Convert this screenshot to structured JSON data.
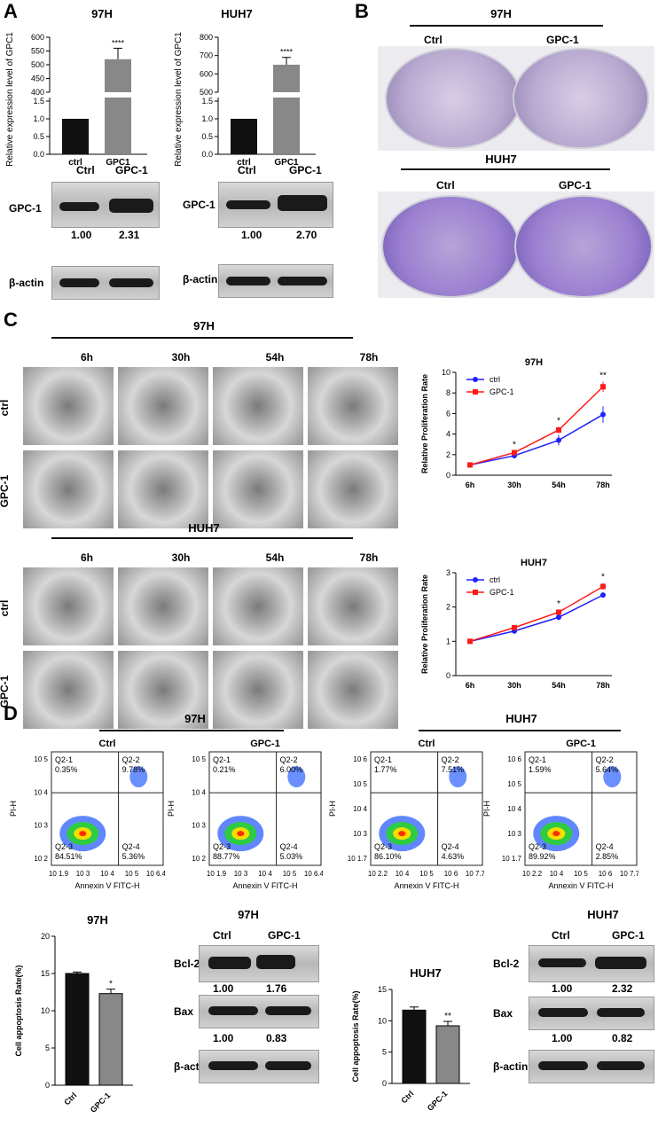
{
  "panels": {
    "a": "A",
    "b": "B",
    "c": "C",
    "d": "D"
  },
  "panelA": {
    "left_title": "97H",
    "right_title": "HUH7",
    "ylabel": "Relative expression level of GPC1",
    "sig": "****",
    "blot_left": {
      "headers": [
        "Ctrl",
        "GPC-1"
      ],
      "rows": [
        "GPC-1",
        "β-actin"
      ],
      "values": [
        "1.00",
        "2.31"
      ]
    },
    "blot_right": {
      "headers": [
        "Ctrl",
        "GPC-1"
      ],
      "rows": [
        "GPC-1",
        "β-actin"
      ],
      "values": [
        "1.00",
        "2.70"
      ]
    }
  },
  "panelB": {
    "top_title": "97H",
    "bottom_title": "HUH7",
    "labels": [
      "Ctrl",
      "GPC-1"
    ]
  },
  "panelC": {
    "top_title": "97H",
    "bottom_title": "HUH7",
    "times": [
      "6h",
      "30h",
      "54h",
      "78h"
    ],
    "rows": [
      "ctrl",
      "GPC-1"
    ]
  },
  "panelD": {
    "group_97h": "97H",
    "group_huh7": "HUH7",
    "flow": [
      {
        "title": "Ctrl",
        "q21": "Q2-1",
        "v21": "0.35%",
        "q22": "Q2-2",
        "v22": "9.78%",
        "q23": "Q2-3",
        "v23": "84.51%",
        "q24": "Q2-4",
        "v24": "5.36%",
        "yticks": [
          "10 2",
          "10 3",
          "10 4",
          "10 5"
        ],
        "xticks": [
          "10 1.9",
          "10 3",
          "10 4",
          "10 5",
          "10 6.4"
        ]
      },
      {
        "title": "GPC-1",
        "q21": "Q2-1",
        "v21": "0.21%",
        "q22": "Q2-2",
        "v22": "6.00%",
        "q23": "Q2-3",
        "v23": "88.77%",
        "q24": "Q2-4",
        "v24": "5.03%",
        "yticks": [
          "10 2",
          "10 3",
          "10 4",
          "10 5"
        ],
        "xticks": [
          "10 1.9",
          "10 3",
          "10 4",
          "10 5",
          "10 6.4"
        ]
      },
      {
        "title": "Ctrl",
        "q21": "Q2-1",
        "v21": "1.77%",
        "q22": "Q2-2",
        "v22": "7.51%",
        "q23": "Q2-3",
        "v23": "86.10%",
        "q24": "Q2-4",
        "v24": "4.63%",
        "yticks": [
          "10 1.7",
          "10 3",
          "10 4",
          "10 5",
          "10 6"
        ],
        "xticks": [
          "10 2.2",
          "10 4",
          "10 5",
          "10 6",
          "10 7.7"
        ]
      },
      {
        "title": "GPC-1",
        "q21": "Q2-1",
        "v21": "1.59%",
        "q22": "Q2-2",
        "v22": "5.64%",
        "q23": "Q2-3",
        "v23": "89.92%",
        "q24": "Q2-4",
        "v24": "2.85%",
        "yticks": [
          "10 1.7",
          "10 3",
          "10 4",
          "10 5",
          "10 6"
        ],
        "xticks": [
          "10 2.2",
          "10 4",
          "10 5",
          "10 6",
          "10 7.7"
        ]
      }
    ],
    "flow_ylabel": "PI-H",
    "flow_xlabel": "Annexin V FITC-H",
    "apop_title_97h": "97H",
    "apop_title_huh7": "HUH7",
    "apop_ylabel": "Cell appoptosis Rate(%)",
    "apop_ylabel_huh7": "Cell appoptosis Rate(%)",
    "blot_97h": {
      "title": "97H",
      "headers": [
        "Ctrl",
        "GPC-1"
      ],
      "rows": [
        "Bcl-2",
        "Bax",
        "β-actin"
      ],
      "v1": [
        "1.00",
        "1.76"
      ],
      "v2": [
        "1.00",
        "0.83"
      ]
    },
    "blot_huh7": {
      "title": "HUH7",
      "headers": [
        "Ctrl",
        "GPC-1"
      ],
      "rows": [
        "Bcl-2",
        "Bax",
        "β-actin"
      ],
      "v1": [
        "1.00",
        "2.32"
      ],
      "v2": [
        "1.00",
        "0.82"
      ]
    }
  },
  "chart_data": [
    {
      "type": "bar",
      "categories": [
        "ctrl",
        "GPC1"
      ],
      "values": [
        1.0,
        520
      ],
      "errors": [
        0,
        40
      ],
      "ylabel": "Relative expression level of GPC1",
      "title": "97H",
      "yticks_low": [
        "0.0",
        "0.5",
        "1.0",
        "1.5"
      ],
      "yticks_high": [
        "400",
        "450",
        "500",
        "550",
        "600"
      ],
      "ylim_low": [
        0,
        1.6
      ],
      "ylim_high": [
        400,
        600
      ],
      "sig": [
        "",
        "****"
      ]
    },
    {
      "type": "bar",
      "categories": [
        "ctrl",
        "GPC1"
      ],
      "values": [
        1.0,
        650
      ],
      "errors": [
        0,
        40
      ],
      "ylabel": "Relative expression level of GPC1",
      "title": "HUH7",
      "yticks_low": [
        "0.0",
        "0.5",
        "1.0",
        "1.5"
      ],
      "yticks_high": [
        "500",
        "600",
        "700",
        "800"
      ],
      "ylim_low": [
        0,
        1.6
      ],
      "ylim_high": [
        500,
        800
      ],
      "sig": [
        "",
        "****"
      ]
    },
    {
      "type": "line",
      "title": "97H",
      "ylabel": "Relative Proliferation Rate",
      "x": [
        "6h",
        "30h",
        "54h",
        "78h"
      ],
      "ylim": [
        0,
        10
      ],
      "yticks": [
        "0",
        "2",
        "4",
        "6",
        "8",
        "10"
      ],
      "series": [
        {
          "name": "ctrl",
          "color": "#2020ff",
          "values": [
            1.0,
            1.9,
            3.4,
            5.9
          ],
          "errors": [
            0.05,
            0.15,
            0.5,
            0.8
          ]
        },
        {
          "name": "GPC-1",
          "color": "#ff1a1a",
          "values": [
            1.0,
            2.2,
            4.4,
            8.6
          ],
          "errors": [
            0.05,
            0.15,
            0.3,
            0.5
          ]
        }
      ],
      "sig": [
        "",
        "*",
        "*",
        "**"
      ]
    },
    {
      "type": "line",
      "title": "HUH7",
      "ylabel": "Relative Proliferation Rate",
      "x": [
        "6h",
        "30h",
        "54h",
        "78h"
      ],
      "ylim": [
        0,
        3
      ],
      "yticks": [
        "0",
        "1",
        "2",
        "3"
      ],
      "series": [
        {
          "name": "ctrl",
          "color": "#2020ff",
          "values": [
            1.0,
            1.3,
            1.7,
            2.35
          ],
          "errors": [
            0.03,
            0.04,
            0.08,
            0.05
          ]
        },
        {
          "name": "GPC-1",
          "color": "#ff1a1a",
          "values": [
            1.0,
            1.4,
            1.85,
            2.6
          ],
          "errors": [
            0.03,
            0.04,
            0.06,
            0.1
          ]
        }
      ],
      "sig": [
        "",
        "",
        "*",
        "*"
      ]
    },
    {
      "type": "bar",
      "title": "97H",
      "categories": [
        "Ctrl",
        "GPC-1"
      ],
      "values": [
        15.0,
        12.3
      ],
      "errors": [
        0.2,
        0.6
      ],
      "ylim": [
        0,
        20
      ],
      "yticks": [
        "0",
        "5",
        "10",
        "15",
        "20"
      ],
      "ylabel": "Cell appoptosis Rate(%)",
      "sig": [
        "",
        "*"
      ]
    },
    {
      "type": "bar",
      "title": "HUH7",
      "categories": [
        "Ctrl",
        "GPC-1"
      ],
      "values": [
        11.7,
        9.2
      ],
      "errors": [
        0.5,
        0.7
      ],
      "ylim": [
        0,
        15
      ],
      "yticks": [
        "0",
        "5",
        "10",
        "15"
      ],
      "ylabel": "Cell appoptosis Rate(%)",
      "sig": [
        "",
        "**"
      ]
    }
  ]
}
